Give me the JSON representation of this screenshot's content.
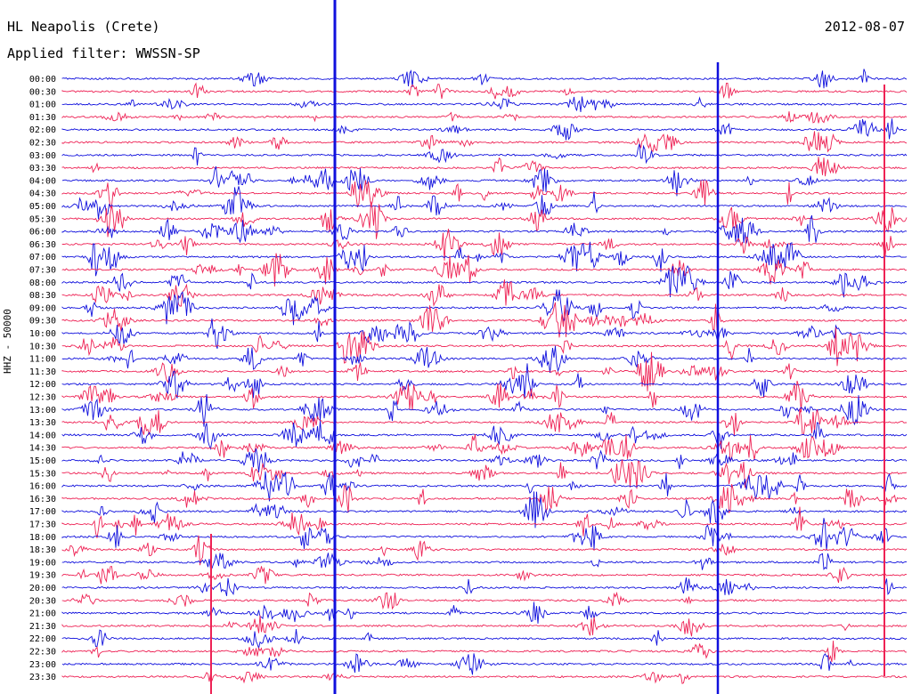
{
  "header": {
    "station": "HL Neapolis (Crete)",
    "date": "2012-08-07",
    "filter": "Applied filter: WWSSN-SP"
  },
  "axis": {
    "channel_label": "HHZ - 50000"
  },
  "colors": {
    "trace_even": "#1010dd",
    "trace_odd": "#ee2255"
  },
  "chart_data": {
    "type": "line",
    "traces": [
      {
        "label": "00:00",
        "color": "blue"
      },
      {
        "label": "00:30",
        "color": "red"
      },
      {
        "label": "01:00",
        "color": "blue"
      },
      {
        "label": "01:30",
        "color": "red"
      },
      {
        "label": "02:00",
        "color": "blue"
      },
      {
        "label": "02:30",
        "color": "red"
      },
      {
        "label": "03:00",
        "color": "blue"
      },
      {
        "label": "03:30",
        "color": "red"
      },
      {
        "label": "04:00",
        "color": "blue"
      },
      {
        "label": "04:30",
        "color": "red"
      },
      {
        "label": "05:00",
        "color": "blue"
      },
      {
        "label": "05:30",
        "color": "red"
      },
      {
        "label": "06:00",
        "color": "blue"
      },
      {
        "label": "06:30",
        "color": "red"
      },
      {
        "label": "07:00",
        "color": "blue"
      },
      {
        "label": "07:30",
        "color": "red"
      },
      {
        "label": "08:00",
        "color": "blue"
      },
      {
        "label": "08:30",
        "color": "red"
      },
      {
        "label": "09:00",
        "color": "blue"
      },
      {
        "label": "09:30",
        "color": "red"
      },
      {
        "label": "10:00",
        "color": "blue"
      },
      {
        "label": "10:30",
        "color": "red"
      },
      {
        "label": "11:00",
        "color": "blue"
      },
      {
        "label": "11:30",
        "color": "red"
      },
      {
        "label": "12:00",
        "color": "blue"
      },
      {
        "label": "12:30",
        "color": "red"
      },
      {
        "label": "13:00",
        "color": "blue"
      },
      {
        "label": "13:30",
        "color": "red"
      },
      {
        "label": "14:00",
        "color": "blue"
      },
      {
        "label": "14:30",
        "color": "red"
      },
      {
        "label": "15:00",
        "color": "blue"
      },
      {
        "label": "15:30",
        "color": "red"
      },
      {
        "label": "16:00",
        "color": "blue"
      },
      {
        "label": "16:30",
        "color": "red"
      },
      {
        "label": "17:00",
        "color": "blue"
      },
      {
        "label": "17:30",
        "color": "red"
      },
      {
        "label": "18:00",
        "color": "blue"
      },
      {
        "label": "18:30",
        "color": "red"
      },
      {
        "label": "19:00",
        "color": "blue"
      },
      {
        "label": "19:30",
        "color": "red"
      },
      {
        "label": "20:00",
        "color": "blue"
      },
      {
        "label": "20:30",
        "color": "red"
      },
      {
        "label": "21:00",
        "color": "blue"
      },
      {
        "label": "21:30",
        "color": "red"
      },
      {
        "label": "22:00",
        "color": "blue"
      },
      {
        "label": "22:30",
        "color": "red"
      },
      {
        "label": "23:00",
        "color": "blue"
      },
      {
        "label": "23:30",
        "color": "red"
      }
    ]
  }
}
